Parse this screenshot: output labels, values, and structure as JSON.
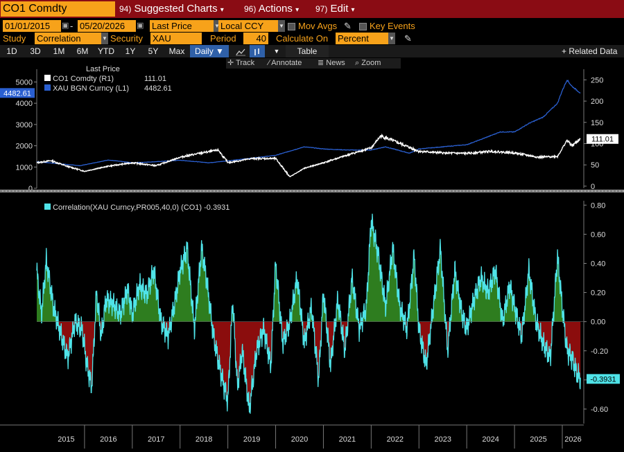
{
  "header": {
    "ticker": "CO1 Comdty",
    "menus": [
      {
        "num": "94)",
        "label": "Suggested Charts",
        "arrow": "▾"
      },
      {
        "num": "96)",
        "label": "Actions",
        "arrow": "▾"
      },
      {
        "num": "97)",
        "label": "Edit",
        "arrow": "▾"
      }
    ]
  },
  "settings": {
    "start_date": "01/01/2015",
    "end_date": "05/20/2026",
    "price_field": "Last Price",
    "currency": "Local CCY",
    "mov_avgs": "Mov Avgs",
    "key_events": "Key Events",
    "study_label": "Study",
    "study_value": "Correlation",
    "security_label": "Security",
    "security_value": "XAU Curncy",
    "period_label": "Period",
    "period_value": "40",
    "calc_label": "Calculate On",
    "calc_value": "Percent"
  },
  "ranges": {
    "buttons": [
      "1D",
      "3D",
      "1M",
      "6M",
      "YTD",
      "1Y",
      "5Y",
      "Max"
    ],
    "frequency": "Daily ▼",
    "table": "Table",
    "related": "+ Related Data"
  },
  "toolbar": {
    "track": "Track",
    "annotate": "Annotate",
    "news": "News",
    "zoom": "Zoom"
  },
  "colors": {
    "orange": "#f7a21a",
    "header_red": "#8a0c14",
    "brent_white": "#ffffff",
    "gold_blue": "#2a5fd0",
    "corr_line": "#4fe3e8",
    "corr_pos_fill": "#2e7d1f",
    "corr_neg_fill": "#8b0d0d"
  },
  "chart_data": [
    {
      "type": "line",
      "legend_header": "Last Price",
      "series": [
        {
          "name": "CO1 Comdty (R1)",
          "last_value": "111.01",
          "axis": "right",
          "x": [
            2015.0,
            2015.3,
            2015.6,
            2016.0,
            2016.5,
            2017.0,
            2017.5,
            2018.0,
            2018.4,
            2018.8,
            2019.0,
            2019.5,
            2020.0,
            2020.3,
            2020.6,
            2021.0,
            2021.5,
            2022.0,
            2022.2,
            2022.5,
            2023.0,
            2023.5,
            2024.0,
            2024.5,
            2025.0,
            2025.5,
            2025.9,
            2026.1,
            2026.2,
            2026.38
          ],
          "y": [
            55,
            60,
            48,
            35,
            47,
            55,
            48,
            68,
            77,
            85,
            55,
            65,
            65,
            22,
            42,
            55,
            73,
            90,
            118,
            105,
            82,
            78,
            77,
            82,
            78,
            68,
            70,
            108,
            95,
            111
          ]
        },
        {
          "name": "XAU BGN Curncy (L1)",
          "last_value": "4482.61",
          "axis": "left",
          "x": [
            2015.0,
            2015.5,
            2015.9,
            2016.5,
            2017.0,
            2017.5,
            2018.0,
            2018.6,
            2019.0,
            2019.5,
            2020.0,
            2020.6,
            2021.0,
            2021.5,
            2022.0,
            2022.3,
            2022.8,
            2023.0,
            2023.5,
            2024.0,
            2024.3,
            2024.7,
            2025.0,
            2025.3,
            2025.6,
            2025.9,
            2026.0,
            2026.1,
            2026.2,
            2026.38
          ],
          "y": [
            1250,
            1150,
            1060,
            1330,
            1200,
            1250,
            1320,
            1200,
            1290,
            1420,
            1550,
            1950,
            1850,
            1800,
            1800,
            1950,
            1650,
            1850,
            1950,
            2050,
            2300,
            2650,
            2650,
            3050,
            3350,
            4000,
            4600,
            5100,
            4800,
            4482.61
          ]
        }
      ],
      "left_axis": {
        "ticks": [
          0,
          1000,
          2000,
          3000,
          4000,
          5000
        ],
        "range": [
          0,
          5600
        ]
      },
      "right_axis": {
        "ticks": [
          0,
          50,
          100,
          150,
          200,
          250
        ],
        "range": [
          -5,
          275
        ]
      },
      "left_tag": "4482.61",
      "right_tag": "111.01"
    },
    {
      "type": "area",
      "series": [
        {
          "name": "Correlation(XAU Curncy,PR005,40,0) (CO1) -0.3931",
          "last_value": "-0.3931",
          "x": [
            2015.0,
            2015.1,
            2015.2,
            2015.35,
            2015.5,
            2015.65,
            2015.8,
            2015.95,
            2016.05,
            2016.15,
            2016.25,
            2016.35,
            2016.45,
            2016.6,
            2016.75,
            2016.9,
            2017.0,
            2017.15,
            2017.3,
            2017.45,
            2017.6,
            2017.75,
            2017.9,
            2018.0,
            2018.15,
            2018.3,
            2018.45,
            2018.55,
            2018.7,
            2018.85,
            2019.0,
            2019.1,
            2019.2,
            2019.3,
            2019.45,
            2019.6,
            2019.75,
            2019.9,
            2020.0,
            2020.15,
            2020.3,
            2020.45,
            2020.6,
            2020.75,
            2020.9,
            2021.0,
            2021.15,
            2021.3,
            2021.45,
            2021.6,
            2021.75,
            2021.9,
            2022.0,
            2022.15,
            2022.3,
            2022.45,
            2022.6,
            2022.75,
            2022.9,
            2023.0,
            2023.15,
            2023.3,
            2023.45,
            2023.6,
            2023.75,
            2023.9,
            2024.0,
            2024.15,
            2024.3,
            2024.45,
            2024.6,
            2024.75,
            2024.9,
            2025.0,
            2025.15,
            2025.3,
            2025.45,
            2025.6,
            2025.75,
            2025.9,
            2026.0,
            2026.1,
            2026.2,
            2026.3,
            2026.38
          ],
          "y": [
            0.35,
            0.05,
            0.42,
            0.1,
            -0.08,
            -0.25,
            0.0,
            -0.05,
            -0.3,
            -0.45,
            0.2,
            -0.1,
            0.15,
            0.12,
            0.05,
            0.22,
            0.05,
            0.25,
            0.18,
            0.35,
            0.0,
            -0.1,
            0.15,
            0.35,
            0.5,
            -0.05,
            0.5,
            0.3,
            -0.1,
            -0.35,
            -0.55,
            0.15,
            -0.45,
            -0.2,
            -0.6,
            -0.2,
            -0.05,
            -0.3,
            0.4,
            -0.15,
            0.0,
            0.3,
            -0.15,
            0.1,
            -0.4,
            0.2,
            -0.3,
            0.15,
            -0.2,
            0.3,
            -0.05,
            0.1,
            0.7,
            0.45,
            0.1,
            0.5,
            0.1,
            -0.05,
            0.45,
            -0.05,
            -0.3,
            0.1,
            0.5,
            -0.2,
            0.35,
            0.05,
            -0.05,
            0.15,
            0.3,
            0.2,
            0.35,
            0.0,
            0.25,
            0.1,
            -0.1,
            0.35,
            0.0,
            -0.15,
            -0.25,
            0.45,
            0.1,
            -0.2,
            -0.25,
            -0.35,
            -0.3931
          ]
        }
      ],
      "y_axis": {
        "ticks": [
          -0.6,
          -0.4,
          -0.2,
          0.0,
          0.2,
          0.4,
          0.6,
          0.8
        ],
        "labels": [
          "-0.60",
          "-0.40",
          "-0.20",
          "0.00",
          "0.20",
          "0.40",
          "0.60",
          "0.80"
        ],
        "range": [
          -0.7,
          0.83
        ]
      },
      "value_tag": "-0.3931"
    }
  ],
  "x_axis": {
    "years": [
      "2015",
      "2016",
      "2017",
      "2018",
      "2019",
      "2020",
      "2021",
      "2022",
      "2023",
      "2024",
      "2025",
      "2026"
    ]
  }
}
